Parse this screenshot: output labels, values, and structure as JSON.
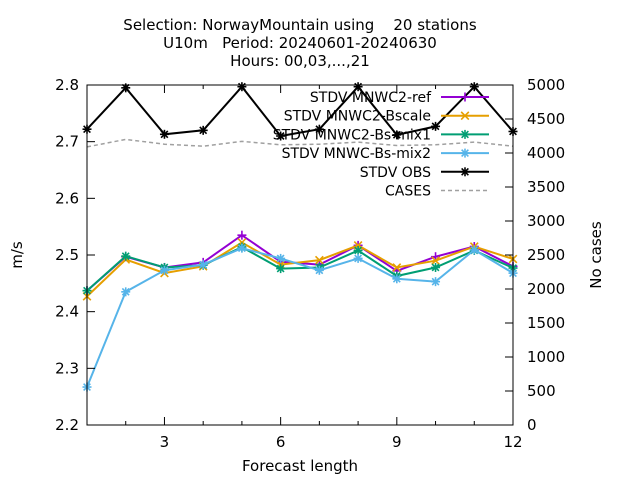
{
  "chart_data": {
    "type": "line",
    "title_lines": [
      "Selection: NorwayMountain using    20 stations",
      "U10m   Period: 20240601-20240630",
      "Hours: 00,03,...,21"
    ],
    "xlabel": "Forecast length",
    "ylabel": "m/s",
    "y2label": "No cases",
    "x": [
      1,
      2,
      3,
      4,
      5,
      6,
      7,
      8,
      9,
      10,
      11,
      12
    ],
    "xlim": [
      1,
      12
    ],
    "ylim": [
      2.2,
      2.8
    ],
    "y2lim": [
      0,
      5000
    ],
    "xticks": [
      "3",
      "6",
      "9",
      "12"
    ],
    "yticks": [
      "2.2",
      "2.3",
      "2.4",
      "2.5",
      "2.6",
      "2.7",
      "2.8"
    ],
    "y2ticks": [
      "0",
      "500",
      "1000",
      "1500",
      "2000",
      "2500",
      "3000",
      "3500",
      "4000",
      "4500",
      "5000"
    ],
    "legend_position": "top-right",
    "grid": false,
    "series": [
      {
        "name": "STDV MNWC2-ref",
        "color": "#9400d3",
        "marker": "plus",
        "values": [
          2.437,
          2.497,
          2.478,
          2.487,
          2.535,
          2.488,
          2.483,
          2.517,
          2.472,
          2.497,
          2.515,
          2.48
        ]
      },
      {
        "name": "STDV MNWC2-Bscale",
        "color": "#e69f00",
        "marker": "x",
        "values": [
          2.427,
          2.492,
          2.468,
          2.48,
          2.522,
          2.483,
          2.491,
          2.517,
          2.478,
          2.49,
          2.515,
          2.493
        ]
      },
      {
        "name": "STDV MNWC2-Bs-mix1",
        "color": "#009e73",
        "marker": "star",
        "values": [
          2.437,
          2.498,
          2.478,
          2.482,
          2.514,
          2.476,
          2.478,
          2.508,
          2.463,
          2.478,
          2.508,
          2.477
        ]
      },
      {
        "name": "STDV MNWC-Bs-mix2",
        "color": "#56b4e9",
        "marker": "star",
        "values": [
          2.267,
          2.435,
          2.473,
          2.483,
          2.512,
          2.494,
          2.473,
          2.494,
          2.458,
          2.453,
          2.509,
          2.468
        ]
      },
      {
        "name": "STDV OBS",
        "color": "#000000",
        "marker": "star",
        "values": [
          2.722,
          2.795,
          2.713,
          2.72,
          2.797,
          2.71,
          2.722,
          2.797,
          2.712,
          2.727,
          2.797,
          2.718
        ]
      },
      {
        "name": "CASES",
        "color": "#a0a0a0",
        "dash": true,
        "axis": "y2",
        "values": [
          4090,
          4200,
          4130,
          4100,
          4170,
          4120,
          4130,
          4160,
          4110,
          4120,
          4160,
          4100
        ]
      }
    ]
  }
}
